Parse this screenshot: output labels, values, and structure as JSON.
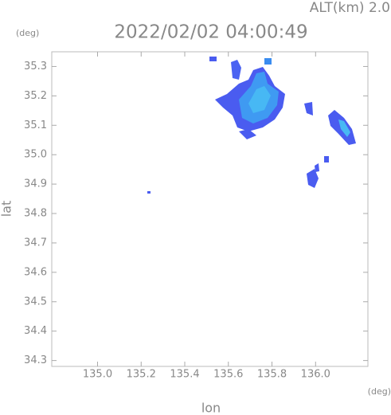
{
  "chart_data": {
    "type": "radar-map",
    "title": "2022/02/02 04:00:49",
    "altitude_label": "ALT(km)  2.0",
    "y_unit": "(deg)",
    "x_unit": "(deg)",
    "xlabel": "lon",
    "ylabel": "lat",
    "xlim": [
      134.79,
      136.24
    ],
    "ylim": [
      34.28,
      35.35
    ],
    "xticks": [
      {
        "value": 135.0,
        "label": "135.0"
      },
      135.2,
      135.4,
      135.6,
      135.8,
      {
        "value": 136.0,
        "label": "136.0"
      }
    ],
    "yticks": [
      34.3,
      34.4,
      34.5,
      34.6,
      34.7,
      34.8,
      34.9,
      {
        "value": 35.0,
        "label": "35.0"
      },
      35.1,
      35.2,
      35.3
    ]
  }
}
